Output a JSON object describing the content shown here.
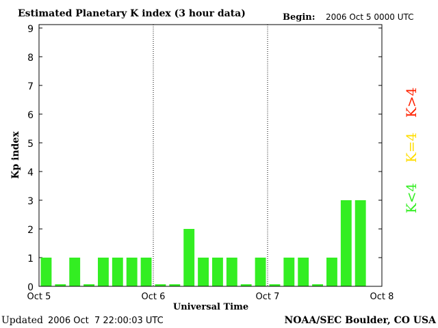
{
  "chart_data": {
    "type": "bar",
    "title": "Estimated Planetary K index (3 hour data)",
    "begin_label": "Begin:",
    "begin_value": "2006 Oct 5 0000 UTC",
    "ylabel": "Kp index",
    "xlabel": "Universal Time",
    "ylim": [
      0,
      9
    ],
    "yticks": [
      "0",
      "1",
      "2",
      "3",
      "4",
      "5",
      "6",
      "7",
      "8",
      "9"
    ],
    "xtick_labels": [
      "Oct 5",
      "Oct 6",
      "Oct 7",
      "Oct 8"
    ],
    "day_count": 3,
    "bars_per_day": 8,
    "values": [
      1,
      0,
      1,
      0,
      1,
      1,
      1,
      1,
      0,
      0,
      2,
      1,
      1,
      1,
      0,
      1,
      0,
      1,
      1,
      0,
      1,
      3,
      3
    ],
    "updated_label": "Updated",
    "updated_value": "2006 Oct  7 22:00:03 UTC",
    "source": "NOAA/SEC Boulder, CO USA",
    "legend": [
      {
        "label": "K<4",
        "color": "#33ee22"
      },
      {
        "label": "K=4",
        "color": "#ffdd00"
      },
      {
        "label": "K>4",
        "color": "#ff2200"
      }
    ],
    "bar_color": "#33ee22"
  }
}
